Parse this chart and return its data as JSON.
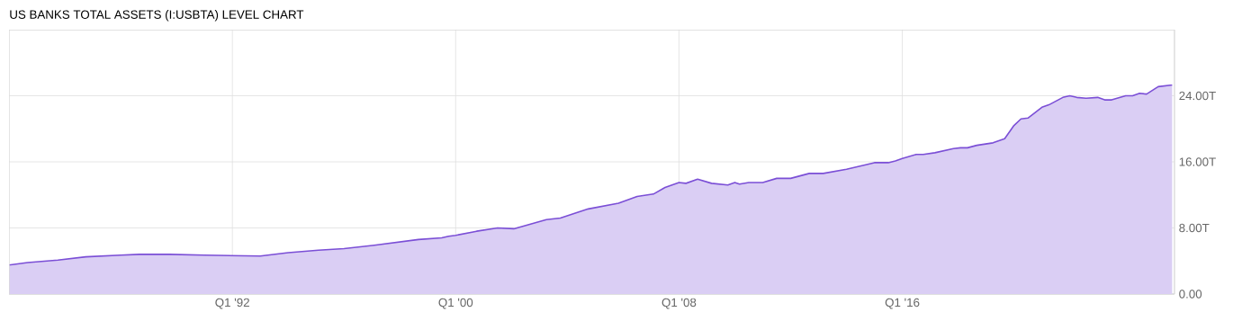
{
  "chart_data": {
    "type": "area",
    "title": "US BANKS TOTAL ASSETS (I:USBTA) LEVEL CHART",
    "color": "#7b4fd6",
    "grid": true,
    "x": [
      "1984-01",
      "1984-09",
      "1985-10",
      "1986-10",
      "1988-01",
      "1988-09",
      "1989-10",
      "1991-01",
      "1993-01",
      "1994-01",
      "1995-02",
      "1996-01",
      "1997-02",
      "1998-09",
      "1999-07",
      "1999-10",
      "2000-01",
      "2000-10",
      "2001-07",
      "2002-02",
      "2003-04",
      "2003-10",
      "2004-10",
      "2005-11",
      "2006-07",
      "2007-02",
      "2007-07",
      "2008-01",
      "2008-04",
      "2008-09",
      "2009-03",
      "2009-10",
      "2010-01",
      "2010-03",
      "2010-07",
      "2011-01",
      "2011-07",
      "2012-01",
      "2012-09",
      "2013-03",
      "2014-01",
      "2015-01",
      "2015-07",
      "2015-10",
      "2016-01",
      "2016-07",
      "2016-10",
      "2017-03",
      "2017-11",
      "2018-02",
      "2018-05",
      "2018-09",
      "2019-04",
      "2019-09",
      "2020-01",
      "2020-04",
      "2020-07",
      "2021-01",
      "2021-04",
      "2021-10",
      "2022-01",
      "2022-04",
      "2022-08",
      "2023-01",
      "2023-04",
      "2023-07",
      "2024-01",
      "2024-04",
      "2024-07",
      "2024-10",
      "2025-03",
      "2025-09"
    ],
    "values": [
      3.5,
      3.8,
      4.1,
      4.5,
      4.7,
      4.8,
      4.8,
      4.7,
      4.6,
      5.0,
      5.3,
      5.5,
      5.9,
      6.6,
      6.8,
      7.0,
      7.1,
      7.6,
      8.0,
      7.9,
      9.0,
      9.2,
      10.3,
      11.0,
      11.8,
      12.1,
      12.9,
      13.5,
      13.4,
      13.9,
      13.4,
      13.2,
      13.5,
      13.3,
      13.5,
      13.5,
      14.0,
      14.0,
      14.6,
      14.6,
      15.1,
      15.9,
      15.9,
      16.1,
      16.4,
      16.9,
      16.9,
      17.1,
      17.6,
      17.7,
      17.7,
      18.0,
      18.3,
      18.8,
      20.4,
      21.2,
      21.3,
      22.6,
      22.9,
      23.8,
      24.0,
      23.8,
      23.7,
      23.8,
      23.5,
      23.5,
      24.0,
      24.0,
      24.3,
      24.2,
      25.1,
      25.3
    ],
    "xlim": [
      "1984-01",
      "2025-10"
    ],
    "ylim": [
      0,
      32
    ],
    "xticks": [
      {
        "value": "1992-01",
        "label": "Q1 '92"
      },
      {
        "value": "2000-01",
        "label": "Q1 '00"
      },
      {
        "value": "2008-01",
        "label": "Q1 '08"
      },
      {
        "value": "2016-01",
        "label": "Q1 '16"
      }
    ],
    "yticks": [
      {
        "value": 0,
        "label": "0.00"
      },
      {
        "value": 8,
        "label": "8.00T"
      },
      {
        "value": 16,
        "label": "16.00T"
      },
      {
        "value": 24,
        "label": "24.00T"
      }
    ]
  }
}
